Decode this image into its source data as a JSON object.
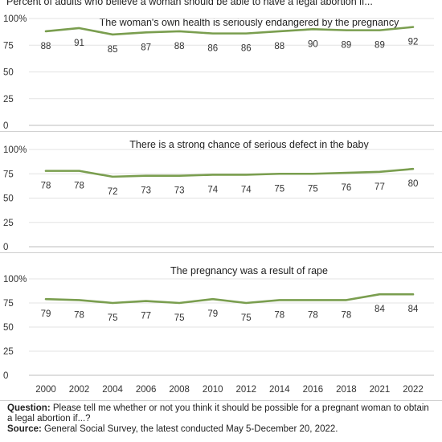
{
  "subtitle": "Percent of adults who believe a woman should be able to have a legal abortion if...",
  "chart_data": [
    {
      "type": "line",
      "title": "The woman's own health is seriously endangered by the pregnancy",
      "x": [
        "2000",
        "2002",
        "2004",
        "2006",
        "2008",
        "2010",
        "2012",
        "2014",
        "2016",
        "2018",
        "2021",
        "2022"
      ],
      "values": [
        88,
        91,
        85,
        87,
        88,
        86,
        86,
        88,
        90,
        89,
        89,
        92
      ],
      "ylim": [
        0,
        100
      ],
      "yticks": [
        "0",
        "25",
        "50",
        "75",
        "100%"
      ],
      "color": "#7a9e4f",
      "grid": true
    },
    {
      "type": "line",
      "title": "There is a strong chance of serious defect in the baby",
      "x": [
        "2000",
        "2002",
        "2004",
        "2006",
        "2008",
        "2010",
        "2012",
        "2014",
        "2016",
        "2018",
        "2021",
        "2022"
      ],
      "values": [
        78,
        78,
        72,
        73,
        73,
        74,
        74,
        75,
        75,
        76,
        77,
        80
      ],
      "ylim": [
        0,
        100
      ],
      "yticks": [
        "0",
        "25",
        "50",
        "75",
        "100%"
      ],
      "color": "#7a9e4f",
      "grid": true
    },
    {
      "type": "line",
      "title": "The pregnancy was a result of rape",
      "x": [
        "2000",
        "2002",
        "2004",
        "2006",
        "2008",
        "2010",
        "2012",
        "2014",
        "2016",
        "2018",
        "2021",
        "2022"
      ],
      "values": [
        79,
        78,
        75,
        77,
        75,
        79,
        75,
        78,
        78,
        78,
        84,
        84
      ],
      "ylim": [
        0,
        100
      ],
      "yticks": [
        "0",
        "25",
        "50",
        "75",
        "100%"
      ],
      "color": "#7a9e4f",
      "grid": true
    }
  ],
  "footer": {
    "question_label": "Question:",
    "question_text": "Please tell me whether or not you think it should be possible for a pregnant woman to obtain a legal abortion if...?",
    "source_label": "Source:",
    "source_text": "General Social Survey, the latest conducted May 5-December 20, 2022."
  }
}
